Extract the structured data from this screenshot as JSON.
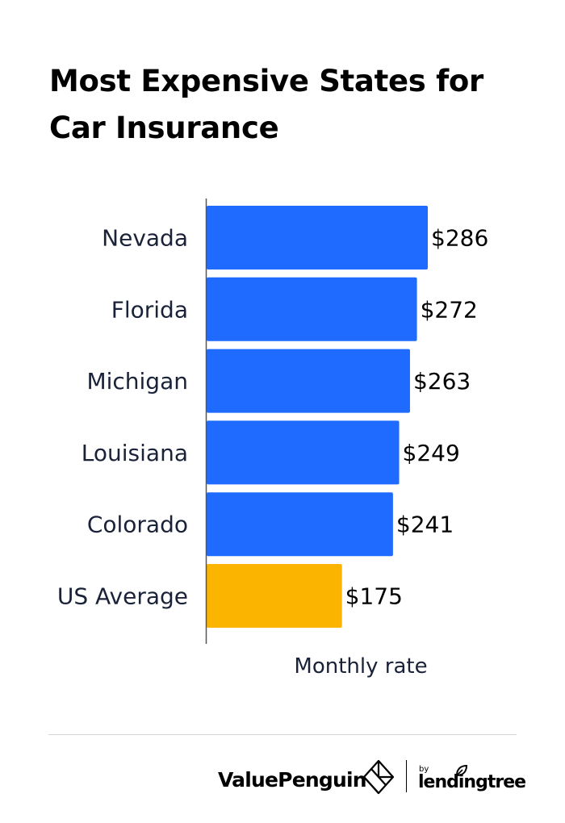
{
  "chart_data": {
    "type": "bar",
    "orientation": "horizontal",
    "title": "Most Expensive States for Car Insurance",
    "xlabel": "Monthly rate",
    "ylabel": "",
    "categories": [
      "Nevada",
      "Florida",
      "Michigan",
      "Louisiana",
      "Colorado",
      "US Average"
    ],
    "values": [
      286,
      272,
      263,
      249,
      241,
      175
    ],
    "value_labels": [
      "$286",
      "$272",
      "$263",
      "$249",
      "$241",
      "$175"
    ],
    "bar_colors": [
      "#1f6bff",
      "#1f6bff",
      "#1f6bff",
      "#1f6bff",
      "#1f6bff",
      "#fbb400"
    ],
    "xlim": [
      0,
      286
    ],
    "grid": false,
    "legend": "none"
  },
  "colors": {
    "state_bar": "#1f6bff",
    "average_bar": "#fbb400",
    "axis_line": "#555555",
    "text_dark": "#1a2238"
  },
  "footer": {
    "brand_name": "ValuePenguin",
    "brand_icon": "valuepenguin-diamond-icon",
    "by_label": "by",
    "parent_brand": "lendingtree"
  }
}
